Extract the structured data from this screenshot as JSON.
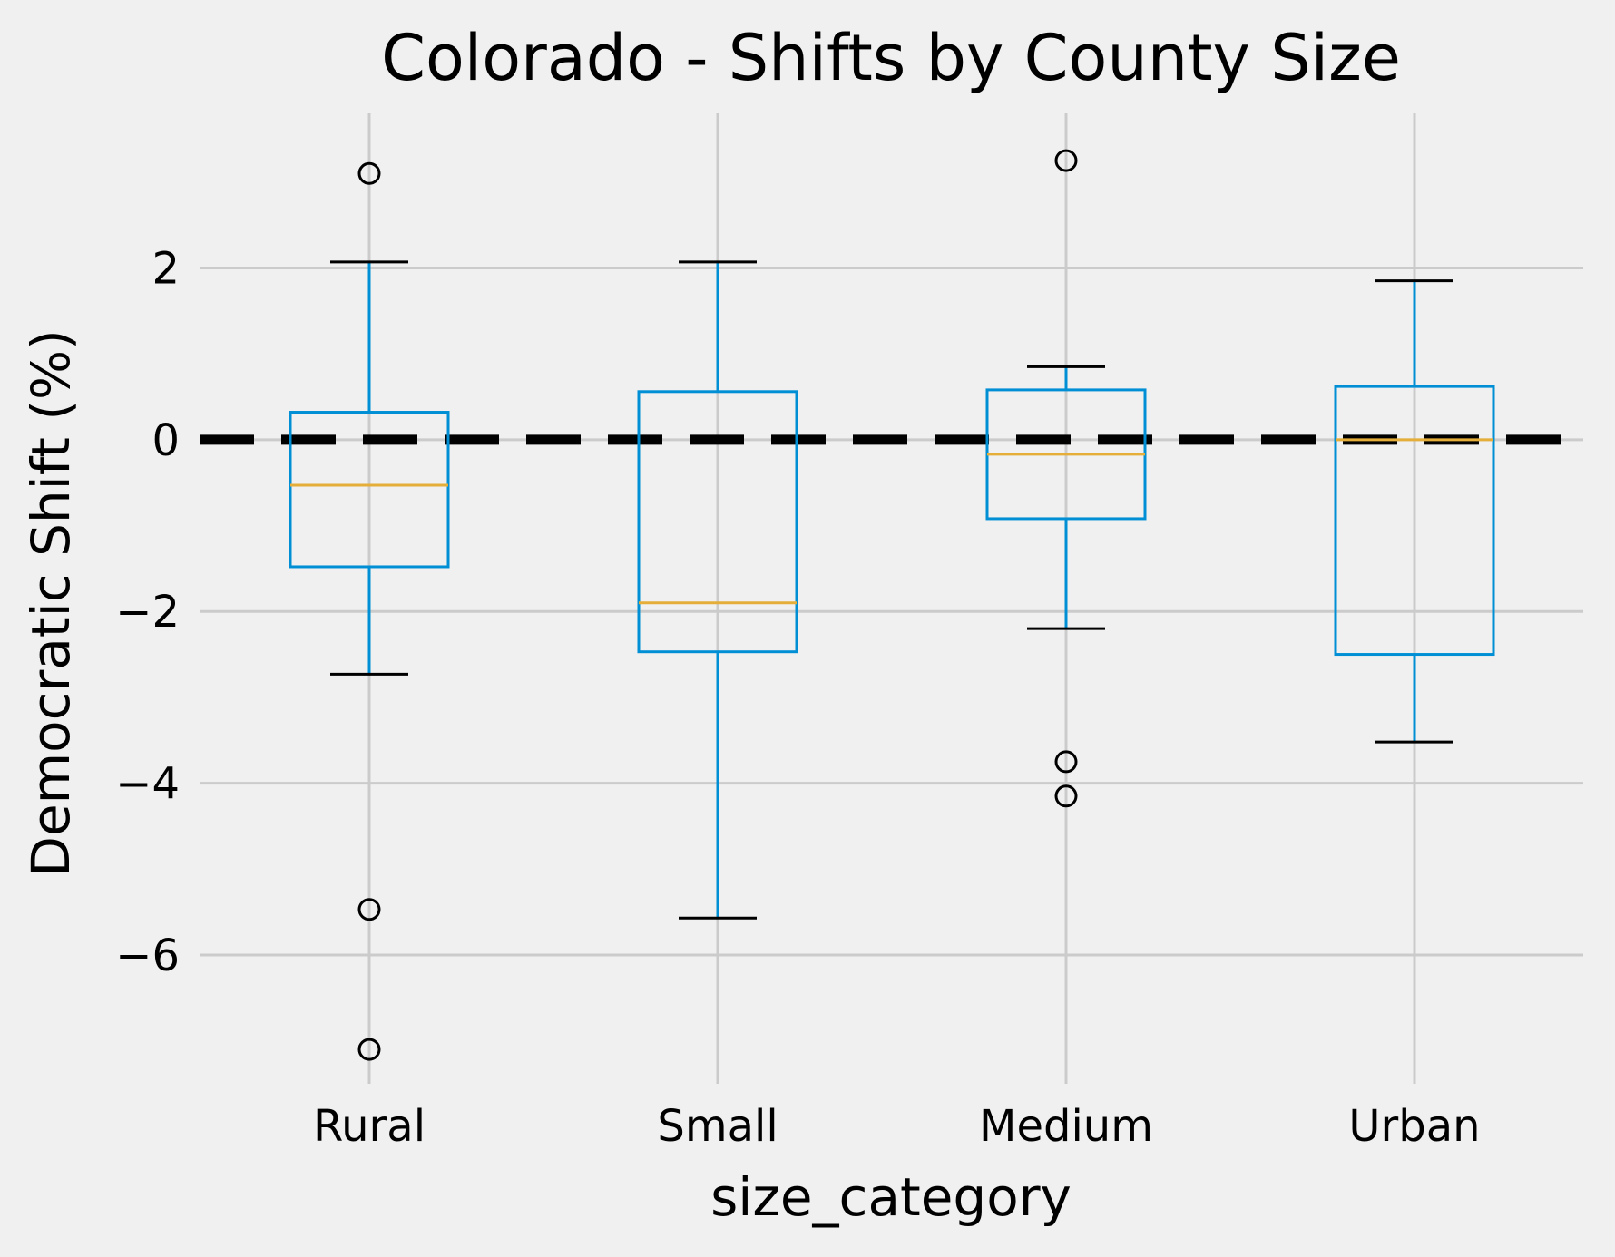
{
  "chart_data": {
    "type": "boxplot",
    "title": "Colorado - Shifts by County Size",
    "xlabel": "size_category",
    "ylabel": "Democratic Shift (%)",
    "ylim": [
      -7.5,
      3.8
    ],
    "yticks": [
      2,
      0,
      -2,
      -4,
      -6
    ],
    "ytick_labels": [
      "2",
      "0",
      "−2",
      "−4",
      "−6"
    ],
    "categories": [
      "Rural",
      "Small",
      "Medium",
      "Urban"
    ],
    "boxes": [
      {
        "category": "Rural",
        "whisker_low": -2.73,
        "q1": -1.48,
        "median": -0.53,
        "q3": 0.32,
        "whisker_high": 2.07,
        "fliers": [
          3.1,
          -5.47,
          -7.1
        ]
      },
      {
        "category": "Small",
        "whisker_low": -5.57,
        "q1": -2.47,
        "median": -1.9,
        "q3": 0.56,
        "whisker_high": 2.07,
        "fliers": []
      },
      {
        "category": "Medium",
        "whisker_low": -2.2,
        "q1": -0.92,
        "median": -0.17,
        "q3": 0.58,
        "whisker_high": 0.85,
        "fliers": [
          3.25,
          -3.75,
          -4.15
        ]
      },
      {
        "category": "Urban",
        "whisker_low": -3.52,
        "q1": -2.5,
        "median": 0.0,
        "q3": 0.62,
        "whisker_high": 1.85,
        "fliers": []
      }
    ],
    "reference_line": {
      "y": 0,
      "style": "dashed",
      "color": "#000000"
    },
    "grid": true,
    "colors": {
      "background": "#f0f0f0",
      "grid": "#cbcbcb",
      "box": "#008fd5",
      "median": "#e5ae38",
      "whisker_cap": "#000000",
      "flier": "#000000"
    }
  }
}
